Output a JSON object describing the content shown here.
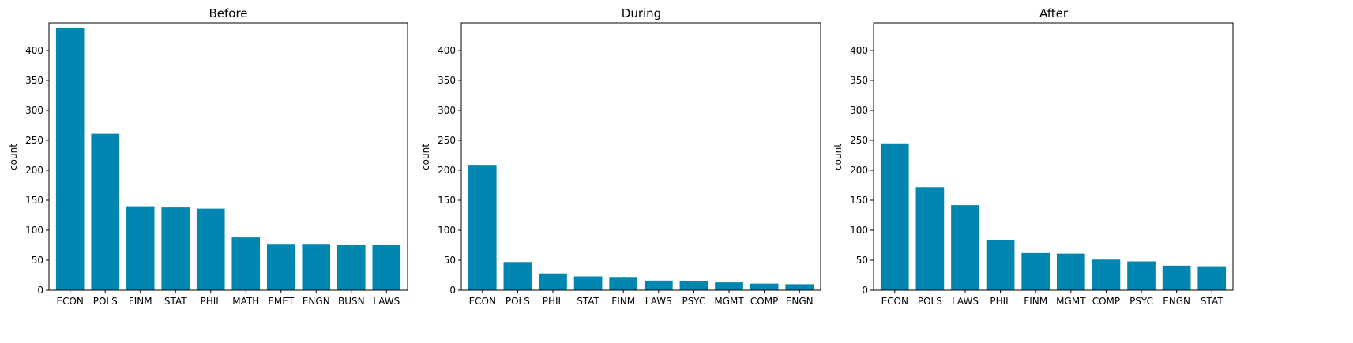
{
  "colors": {
    "bar": "#0086b0",
    "axis": "#000000",
    "background": "#ffffff"
  },
  "chart_data": [
    {
      "type": "bar",
      "title": "Before",
      "xlabel": "",
      "ylabel": "count",
      "ylim": [
        0,
        446
      ],
      "yticks": [
        0,
        50,
        100,
        150,
        200,
        250,
        300,
        350,
        400
      ],
      "grid": false,
      "categories": [
        "ECON",
        "POLS",
        "FINM",
        "STAT",
        "PHIL",
        "MATH",
        "EMET",
        "ENGN",
        "BUSN",
        "LAWS"
      ],
      "values": [
        438,
        261,
        140,
        138,
        136,
        88,
        76,
        76,
        75,
        75
      ]
    },
    {
      "type": "bar",
      "title": "During",
      "xlabel": "",
      "ylabel": "count",
      "ylim": [
        0,
        446
      ],
      "yticks": [
        0,
        50,
        100,
        150,
        200,
        250,
        300,
        350,
        400
      ],
      "grid": false,
      "categories": [
        "ECON",
        "POLS",
        "PHIL",
        "STAT",
        "FINM",
        "LAWS",
        "PSYC",
        "MGMT",
        "COMP",
        "ENGN"
      ],
      "values": [
        209,
        47,
        28,
        23,
        22,
        16,
        15,
        13,
        11,
        10
      ]
    },
    {
      "type": "bar",
      "title": "After",
      "xlabel": "",
      "ylabel": "count",
      "ylim": [
        0,
        446
      ],
      "yticks": [
        0,
        50,
        100,
        150,
        200,
        250,
        300,
        350,
        400
      ],
      "grid": false,
      "categories": [
        "ECON",
        "POLS",
        "LAWS",
        "PHIL",
        "FINM",
        "MGMT",
        "COMP",
        "PSYC",
        "ENGN",
        "STAT"
      ],
      "values": [
        245,
        172,
        142,
        83,
        62,
        61,
        51,
        48,
        41,
        40
      ]
    }
  ]
}
